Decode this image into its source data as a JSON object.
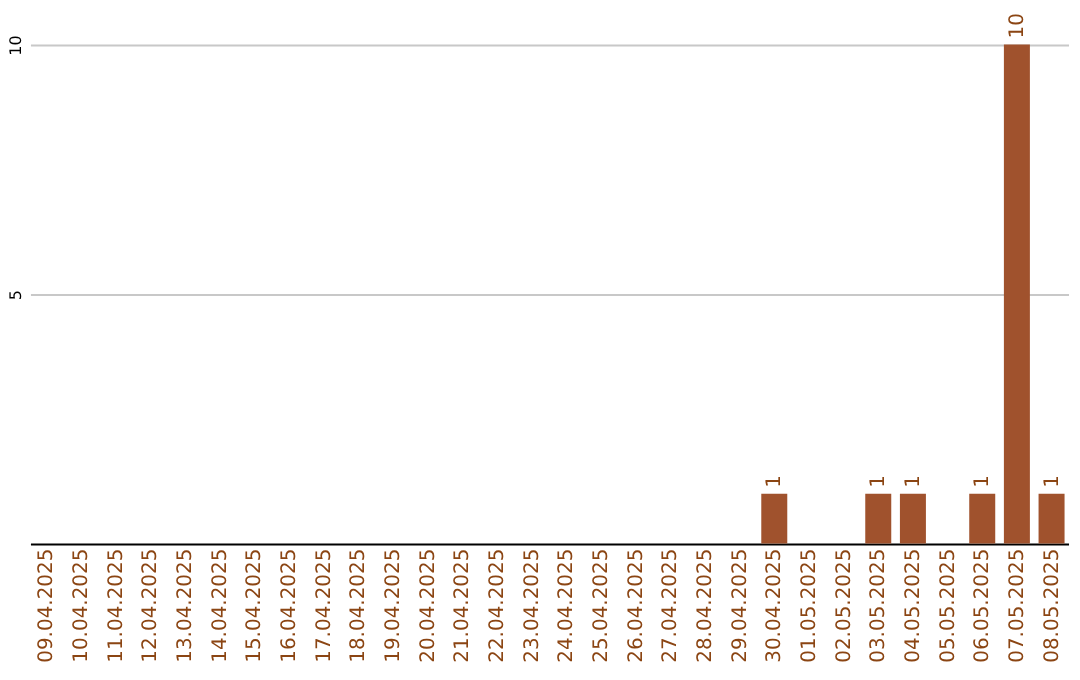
{
  "chart_data": {
    "type": "bar",
    "categories": [
      "09.04.2025",
      "10.04.2025",
      "11.04.2025",
      "12.04.2025",
      "13.04.2025",
      "14.04.2025",
      "15.04.2025",
      "16.04.2025",
      "17.04.2025",
      "18.04.2025",
      "19.04.2025",
      "20.04.2025",
      "21.04.2025",
      "22.04.2025",
      "23.04.2025",
      "24.04.2025",
      "25.04.2025",
      "26.04.2025",
      "27.04.2025",
      "28.04.2025",
      "29.04.2025",
      "30.04.2025",
      "01.05.2025",
      "02.05.2025",
      "03.05.2025",
      "04.05.2025",
      "05.05.2025",
      "06.05.2025",
      "07.05.2025",
      "08.05.2025"
    ],
    "values": [
      0,
      0,
      0,
      0,
      0,
      0,
      0,
      0,
      0,
      0,
      0,
      0,
      0,
      0,
      0,
      0,
      0,
      0,
      0,
      0,
      0,
      1,
      0,
      0,
      1,
      1,
      0,
      1,
      10,
      1
    ],
    "value_labels": [
      null,
      null,
      null,
      null,
      null,
      null,
      null,
      null,
      null,
      null,
      null,
      null,
      null,
      null,
      null,
      null,
      null,
      null,
      null,
      null,
      null,
      "1",
      null,
      null,
      "1",
      "1",
      null,
      "1",
      "10",
      "1"
    ],
    "color": "#a0522d",
    "ylim": [
      0,
      10
    ],
    "yticks": [
      5,
      10
    ],
    "grid": "y"
  }
}
